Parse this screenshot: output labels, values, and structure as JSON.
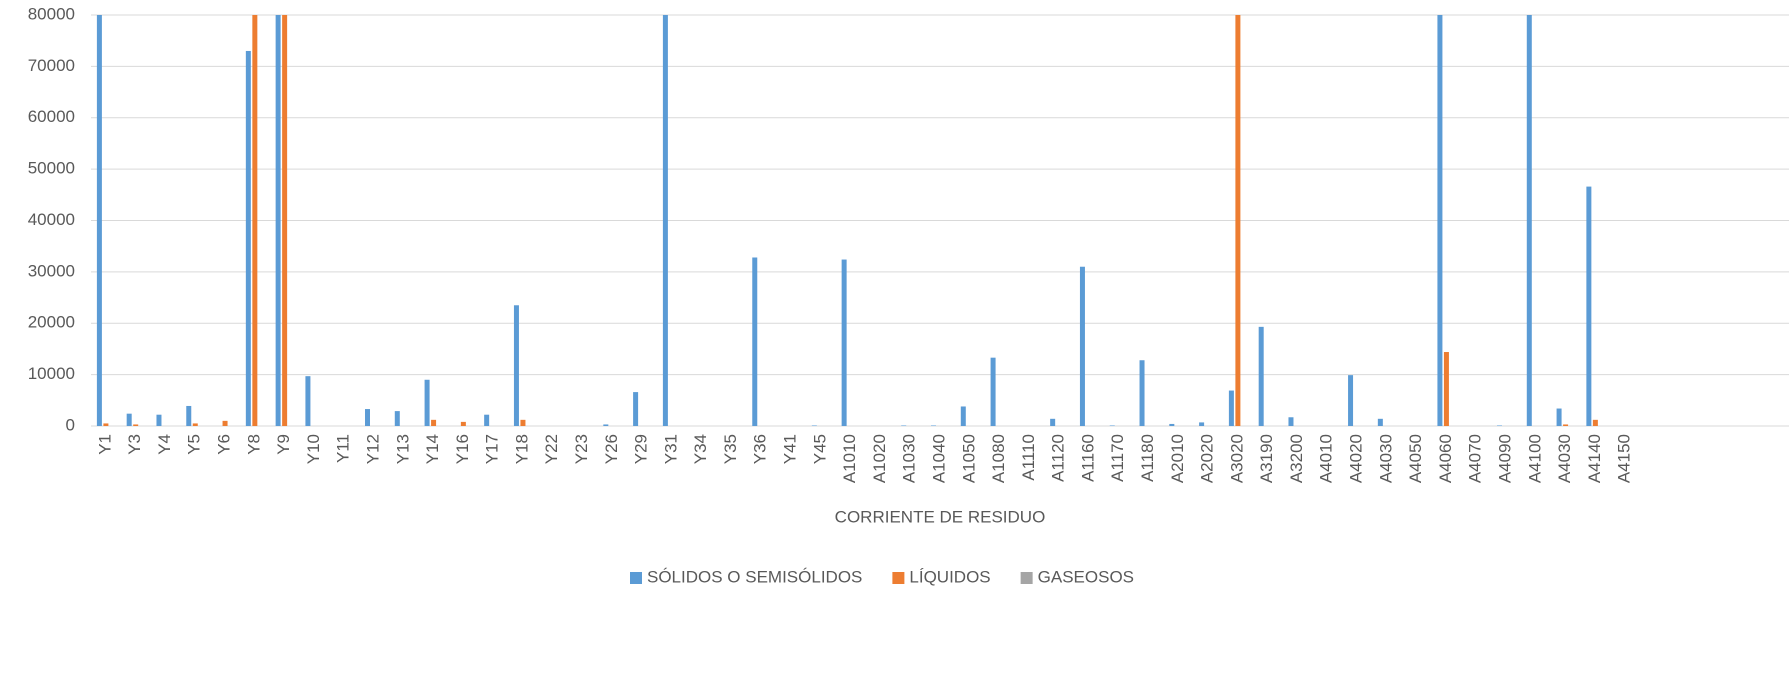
{
  "chart_data": {
    "type": "bar",
    "xlabel": "CORRIENTE DE RESIDUO",
    "categories": [
      "Y1",
      "Y3",
      "Y4",
      "Y5",
      "Y6",
      "Y8",
      "Y9",
      "Y10",
      "Y11",
      "Y12",
      "Y13",
      "Y14",
      "Y16",
      "Y17",
      "Y18",
      "Y22",
      "Y23",
      "Y26",
      "Y29",
      "Y31",
      "Y34",
      "Y35",
      "Y36",
      "Y41",
      "Y45",
      "A1010",
      "A1020",
      "A1030",
      "A1040",
      "A1050",
      "A1080",
      "A1110",
      "A1120",
      "A1160",
      "A1170",
      "A1180",
      "A2010",
      "A2020",
      "A3020",
      "A3190",
      "A3200",
      "A4010",
      "A4020",
      "A4030",
      "A4050",
      "A4060",
      "A4070",
      "A4090",
      "A4100",
      "A4030",
      "A4140",
      "A4150",
      null,
      null,
      null,
      null,
      null
    ],
    "series": [
      {
        "name": "SÓLIDOS O SEMISÓLIDOS",
        "color": "#5b9bd5",
        "values": [
          80000,
          2400,
          2200,
          3900,
          0,
          73000,
          80000,
          9700,
          0,
          3300,
          2900,
          9000,
          0,
          2200,
          23500,
          0,
          0,
          300,
          6600,
          80000,
          0,
          0,
          32800,
          0,
          100,
          32400,
          0,
          100,
          100,
          3800,
          13300,
          0,
          1400,
          31000,
          100,
          12800,
          400,
          700,
          6900,
          19300,
          1700,
          0,
          9900,
          1400,
          0,
          80000,
          0,
          100,
          80000,
          3400,
          46600,
          0,
          null,
          null,
          null,
          null,
          null
        ]
      },
      {
        "name": "LÍQUIDOS",
        "color": "#ed7d31",
        "values": [
          500,
          300,
          0,
          500,
          1000,
          80000,
          80000,
          0,
          0,
          0,
          0,
          1200,
          800,
          0,
          1200,
          0,
          0,
          0,
          0,
          0,
          0,
          0,
          0,
          0,
          0,
          0,
          0,
          0,
          0,
          0,
          0,
          0,
          0,
          0,
          0,
          0,
          0,
          0,
          80000,
          0,
          0,
          0,
          0,
          0,
          0,
          14400,
          0,
          0,
          0,
          300,
          1200,
          0,
          null,
          null,
          null,
          null,
          null
        ]
      },
      {
        "name": "GASEOSOS",
        "color": "#a5a5a5",
        "values": [
          0,
          0,
          0,
          0,
          0,
          0,
          0,
          0,
          0,
          0,
          0,
          0,
          0,
          0,
          0,
          0,
          0,
          0,
          0,
          0,
          0,
          0,
          0,
          0,
          0,
          0,
          0,
          0,
          0,
          0,
          0,
          0,
          0,
          0,
          0,
          0,
          0,
          0,
          0,
          0,
          0,
          0,
          0,
          0,
          0,
          0,
          0,
          0,
          0,
          0,
          0,
          0,
          null,
          null,
          null,
          null,
          null
        ]
      }
    ],
    "ylim": [
      0,
      80000
    ],
    "yticks": [
      0,
      10000,
      20000,
      30000,
      40000,
      50000,
      60000,
      70000,
      80000
    ],
    "grid": true,
    "legend": "bottom"
  }
}
